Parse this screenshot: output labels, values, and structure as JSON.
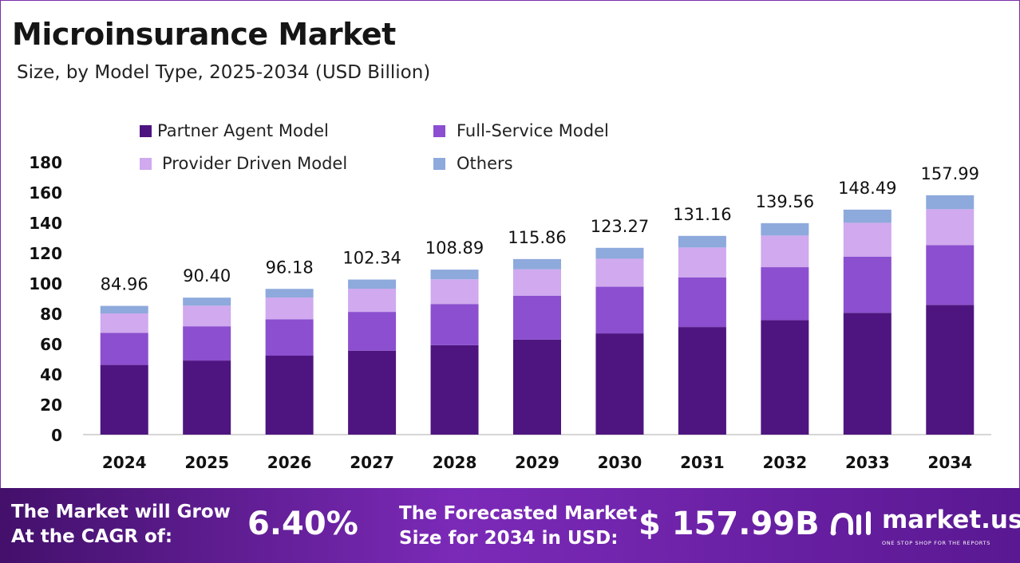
{
  "title": "Microinsurance Market",
  "subtitle": "Size, by Model Type, 2025-2034 (USD Billion)",
  "colors": {
    "partner_agent": "#4e1580",
    "full_service": "#8b4fcf",
    "provider_driven": "#d0a9ee",
    "others": "#8ea9dc",
    "footer_start": "#43106b",
    "footer_end": "#7b2ab8"
  },
  "chart_data": {
    "type": "bar",
    "stacked": true,
    "categories": [
      "2024",
      "2025",
      "2026",
      "2027",
      "2028",
      "2029",
      "2030",
      "2031",
      "2032",
      "2033",
      "2034"
    ],
    "series": [
      {
        "name": "Partner Agent Model",
        "values": [
          46.0,
          48.9,
          52.1,
          55.4,
          59.0,
          62.7,
          66.8,
          71.0,
          75.6,
          80.4,
          85.6
        ]
      },
      {
        "name": "Full-Service Model",
        "values": [
          21.2,
          22.6,
          24.0,
          25.6,
          27.2,
          29.0,
          30.8,
          32.8,
          34.9,
          37.1,
          39.5
        ]
      },
      {
        "name": "Provider Driven Model",
        "values": [
          12.8,
          13.6,
          14.4,
          15.3,
          16.3,
          17.4,
          18.5,
          19.7,
          20.9,
          22.3,
          23.7
        ]
      },
      {
        "name": "Others",
        "values": [
          4.96,
          5.3,
          5.68,
          6.04,
          6.39,
          6.76,
          7.17,
          7.66,
          8.16,
          8.69,
          9.19
        ]
      }
    ],
    "totals": [
      "84.96",
      "90.40",
      "96.18",
      "102.34",
      "108.89",
      "115.86",
      "123.27",
      "131.16",
      "139.56",
      "148.49",
      "157.99"
    ],
    "yticks": [
      0,
      20,
      40,
      60,
      80,
      100,
      120,
      140,
      160,
      180
    ],
    "ylim": [
      0,
      180
    ],
    "legend_position": "top"
  },
  "legend": [
    {
      "label": "Partner Agent Model",
      "key": "partner_agent"
    },
    {
      "label": "Full-Service Model",
      "key": "full_service"
    },
    {
      "label": "Provider Driven Model",
      "key": "provider_driven"
    },
    {
      "label": "Others",
      "key": "others"
    }
  ],
  "footer": {
    "cagr_label_line1": "The Market will Grow",
    "cagr_label_line2": "At the CAGR of:",
    "cagr_value": "6.40%",
    "forecast_label_line1": "The Forecasted Market",
    "forecast_label_line2": "Size for 2034 in USD:",
    "forecast_value": "$ 157.99B",
    "brand_name": "market.us",
    "brand_tagline": "ONE STOP SHOP FOR THE REPORTS"
  }
}
